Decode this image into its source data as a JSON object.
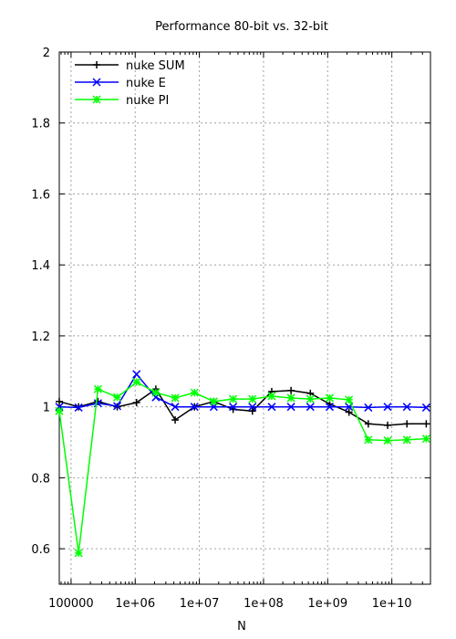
{
  "chart_data": {
    "type": "line",
    "title": "Performance 80-bit vs. 32-bit",
    "xlabel": "N",
    "ylabel": "",
    "xscale": "log",
    "xlim": [
      65536,
      40000000000
    ],
    "ylim": [
      0.5,
      2
    ],
    "grid": true,
    "legend_position": "top-left",
    "x_ticks": [
      {
        "value": 100000,
        "label": "100000"
      },
      {
        "value": 1000000,
        "label": "1e+06"
      },
      {
        "value": 10000000,
        "label": "1e+07"
      },
      {
        "value": 100000000,
        "label": "1e+08"
      },
      {
        "value": 1000000000,
        "label": "1e+09"
      },
      {
        "value": 10000000000,
        "label": "1e+10"
      }
    ],
    "y_ticks": [
      {
        "value": 0.6,
        "label": "0.6"
      },
      {
        "value": 0.8,
        "label": "0.8"
      },
      {
        "value": 1.0,
        "label": "1"
      },
      {
        "value": 1.2,
        "label": "1.2"
      },
      {
        "value": 1.4,
        "label": "1.4"
      },
      {
        "value": 1.6,
        "label": "1.6"
      },
      {
        "value": 1.8,
        "label": "1.8"
      },
      {
        "value": 2.0,
        "label": "2"
      }
    ],
    "x": [
      65536,
      131072,
      262144,
      524288,
      1048576,
      2097152,
      4194304,
      8388608,
      16777216,
      33554432,
      67108864,
      134217728,
      268435456,
      536870912,
      1073741824,
      2147483648,
      4294967296,
      8589934592,
      17179869184,
      34359738368
    ],
    "series": [
      {
        "name": "nuke SUM",
        "color": "#000000",
        "marker": "plus",
        "values": [
          1.015,
          1.0,
          1.015,
          1.0,
          1.012,
          1.05,
          0.963,
          1.0,
          1.015,
          0.993,
          0.988,
          1.043,
          1.046,
          1.038,
          1.008,
          0.985,
          0.952,
          0.948,
          0.952,
          0.952
        ]
      },
      {
        "name": "nuke E",
        "color": "#0000ff",
        "marker": "cross",
        "values": [
          1.0,
          0.998,
          1.01,
          1.002,
          1.092,
          1.027,
          1.0,
          1.0,
          1.0,
          1.0,
          1.0,
          1.0,
          1.0,
          1.0,
          1.0,
          1.0,
          0.998,
          1.0,
          1.0,
          0.998
        ]
      },
      {
        "name": "nuke PI",
        "color": "#00ff00",
        "marker": "star",
        "values": [
          0.988,
          0.588,
          1.05,
          1.027,
          1.07,
          1.04,
          1.025,
          1.04,
          1.015,
          1.022,
          1.022,
          1.03,
          1.025,
          1.022,
          1.025,
          1.02,
          0.907,
          0.905,
          0.907,
          0.91
        ]
      }
    ]
  }
}
